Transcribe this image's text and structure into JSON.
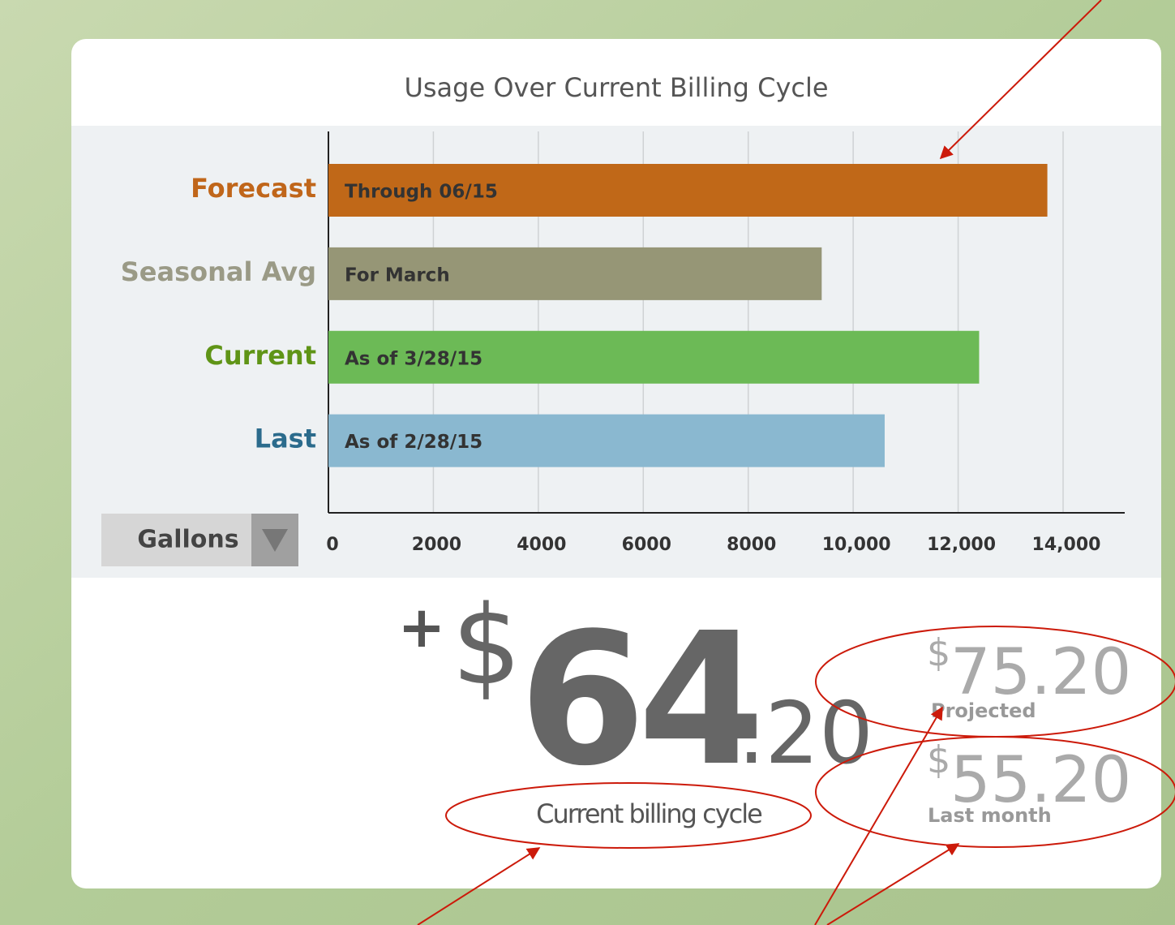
{
  "chart_data": {
    "type": "bar",
    "orientation": "horizontal",
    "title": "Usage Over Current Billing Cycle",
    "categories": [
      "Forecast",
      "Seasonal Avg",
      "Current",
      "Last"
    ],
    "category_colors": [
      "#c0661a",
      "#9a9a86",
      "#5f9416",
      "#2b6b8c"
    ],
    "bar_labels": [
      "Through 06/15",
      "For March",
      "As of 3/28/15",
      "As of 2/28/15"
    ],
    "values": [
      13700,
      9400,
      12400,
      10600
    ],
    "colors": [
      "#c06818",
      "#969676",
      "#6cba56",
      "#8ab8d0"
    ],
    "xlim": [
      0,
      15000
    ],
    "xticks": [
      0,
      2000,
      4000,
      6000,
      8000,
      {
        "value": 10000,
        "label": "10,000"
      },
      {
        "value": 12000,
        "label": "12,000"
      },
      {
        "value": 14000,
        "label": "14,000"
      }
    ],
    "grid": true
  },
  "unit_selector": "Gallons",
  "summary": {
    "sign": "+",
    "currency": "$",
    "dollars": "64",
    "cents": ".20",
    "caption": "Current billing cycle",
    "projected": {
      "currency": "$",
      "amount": "75.20",
      "label": "Projected"
    },
    "last_month": {
      "currency": "$",
      "amount": "55.20",
      "label": "Last month"
    }
  }
}
